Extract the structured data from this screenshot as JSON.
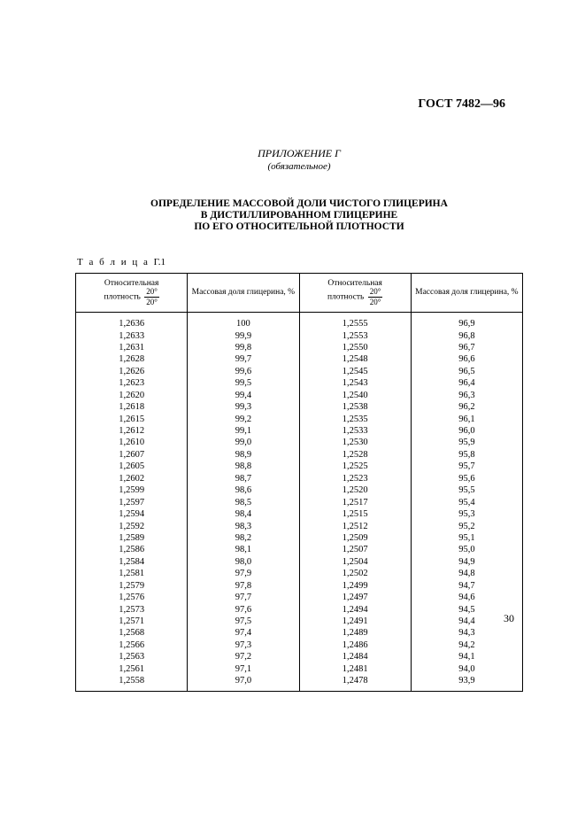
{
  "doc_id": "ГОСТ 7482—96",
  "appendix_label": "ПРИЛОЖЕНИЕ Г",
  "appendix_sub": "(обязательное)",
  "main_title_line1": "ОПРЕДЕЛЕНИЕ МАССОВОЙ ДОЛИ ЧИСТОГО ГЛИЦЕРИНА",
  "main_title_line2": "В ДИСТИЛЛИРОВАННОМ ГЛИЦЕРИНЕ",
  "main_title_line3": "ПО ЕГО ОТНОСИТЕЛЬНОЙ ПЛОТНОСТИ",
  "table_label_word": "Т а б л и ц а",
  "table_label_num": "Г.1",
  "header_col1_a": "Относительная",
  "header_col1_b": "плотность",
  "header_frac_top": "20°",
  "header_frac_bot": "20°",
  "header_col2": "Массовая доля глицерина, %",
  "page_number": "30",
  "columns": [
    "density1",
    "percent1",
    "density2",
    "percent2"
  ],
  "rows": [
    [
      "1,2636",
      "100",
      "1,2555",
      "96,9"
    ],
    [
      "1,2633",
      "99,9",
      "1,2553",
      "96,8"
    ],
    [
      "1,2631",
      "99,8",
      "1,2550",
      "96,7"
    ],
    [
      "1,2628",
      "99,7",
      "1,2548",
      "96,6"
    ],
    [
      "1,2626",
      "99,6",
      "1,2545",
      "96,5"
    ],
    [
      "1,2623",
      "99,5",
      "1,2543",
      "96,4"
    ],
    [
      "1,2620",
      "99,4",
      "1,2540",
      "96,3"
    ],
    [
      "1,2618",
      "99,3",
      "1,2538",
      "96,2"
    ],
    [
      "1,2615",
      "99,2",
      "1,2535",
      "96,1"
    ],
    [
      "1,2612",
      "99,1",
      "1,2533",
      "96,0"
    ],
    [
      "1,2610",
      "99,0",
      "1,2530",
      "95,9"
    ],
    [
      "1,2607",
      "98,9",
      "1,2528",
      "95,8"
    ],
    [
      "1,2605",
      "98,8",
      "1,2525",
      "95,7"
    ],
    [
      "1,2602",
      "98,7",
      "1,2523",
      "95,6"
    ],
    [
      "1,2599",
      "98,6",
      "1,2520",
      "95,5"
    ],
    [
      "1,2597",
      "98,5",
      "1,2517",
      "95,4"
    ],
    [
      "1,2594",
      "98,4",
      "1,2515",
      "95,3"
    ],
    [
      "1,2592",
      "98,3",
      "1,2512",
      "95,2"
    ],
    [
      "1,2589",
      "98,2",
      "1,2509",
      "95,1"
    ],
    [
      "1,2586",
      "98,1",
      "1,2507",
      "95,0"
    ],
    [
      "1,2584",
      "98,0",
      "1,2504",
      "94,9"
    ],
    [
      "1,2581",
      "97,9",
      "1,2502",
      "94,8"
    ],
    [
      "1,2579",
      "97,8",
      "1,2499",
      "94,7"
    ],
    [
      "1,2576",
      "97,7",
      "1,2497",
      "94,6"
    ],
    [
      "1,2573",
      "97,6",
      "1,2494",
      "94,5"
    ],
    [
      "1,2571",
      "97,5",
      "1,2491",
      "94,4"
    ],
    [
      "1,2568",
      "97,4",
      "1,2489",
      "94,3"
    ],
    [
      "1,2566",
      "97,3",
      "1,2486",
      "94,2"
    ],
    [
      "1,2563",
      "97,2",
      "1,2484",
      "94,1"
    ],
    [
      "1,2561",
      "97,1",
      "1,2481",
      "94,0"
    ],
    [
      "1,2558",
      "97,0",
      "1,2478",
      "93,9"
    ]
  ],
  "style": {
    "font_family": "Times New Roman",
    "text_color": "#000000",
    "background_color": "#ffffff",
    "doc_id_fontsize": 14,
    "title_fontsize": 11.5,
    "table_fontsize": 10.5,
    "header_fontsize": 9.5,
    "border_color": "#000000",
    "col_widths_pct": [
      25,
      25,
      25,
      25
    ]
  }
}
